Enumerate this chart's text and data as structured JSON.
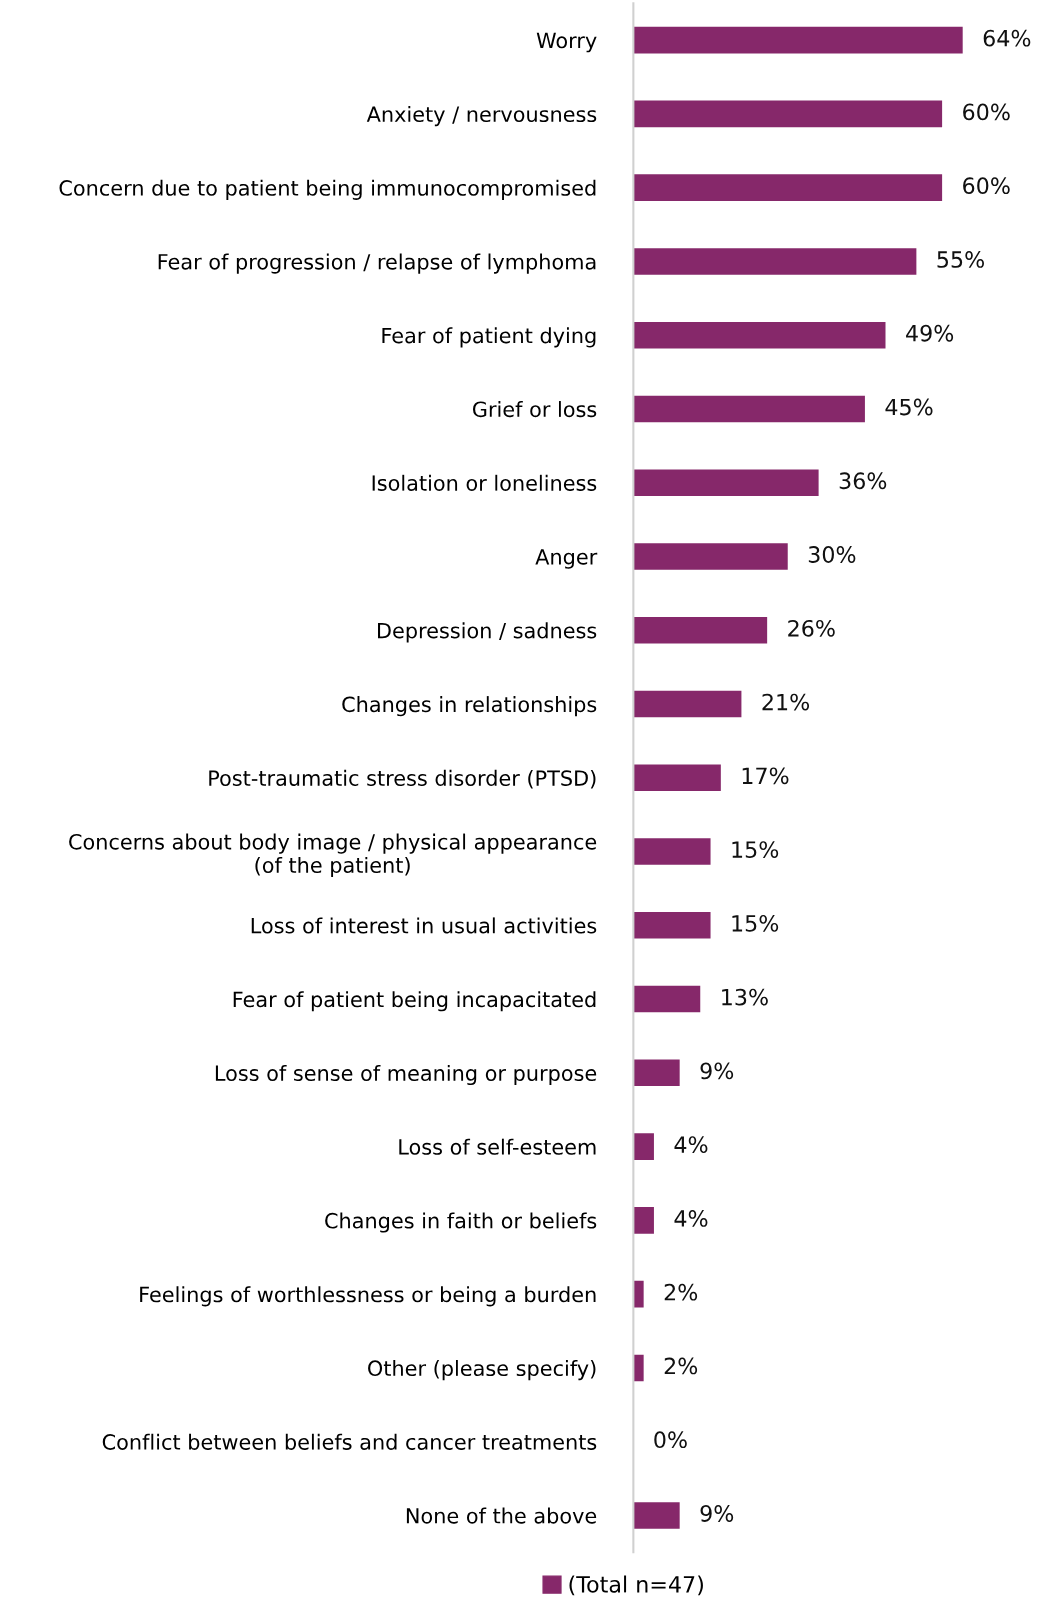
{
  "chart_data": {
    "type": "bar",
    "orientation": "horizontal",
    "tick_labels": "y",
    "grid": false,
    "legend": "bottom",
    "categories": [
      "Worry",
      "Anxiety / nervousness",
      "Concern due to patient being immunocompromised",
      "Fear of progression / relapse of lymphoma",
      "Fear of patient dying",
      "Grief or loss",
      "Isolation or loneliness",
      "Anger",
      "Depression / sadness",
      "Changes in relationships",
      "Post-traumatic stress disorder (PTSD)",
      "Concerns about body image / physical appearance\n(of the patient)",
      "Loss of interest in usual activities",
      "Fear of patient being incapacitated",
      "Loss of sense of meaning or purpose",
      "Loss of self-esteem",
      "Changes in faith or beliefs",
      "Feelings of worthlessness or being a burden",
      "Other (please specify)",
      "Conflict between beliefs and cancer treatments",
      "None of the above"
    ],
    "series": [
      {
        "name": "(Total n=47)",
        "color": "#86286a",
        "values": [
          64,
          60,
          60,
          55,
          49,
          45,
          36,
          30,
          26,
          21,
          17,
          15,
          15,
          13,
          9,
          4,
          4,
          2,
          2,
          0,
          9
        ],
        "value_labels": [
          "64%",
          "60%",
          "60%",
          "55%",
          "49%",
          "45%",
          "36%",
          "30%",
          "26%",
          "21%",
          "17%",
          "15%",
          "15%",
          "13%",
          "9%",
          "4%",
          "4%",
          "2%",
          "2%",
          "0%",
          "9%"
        ]
      }
    ]
  }
}
